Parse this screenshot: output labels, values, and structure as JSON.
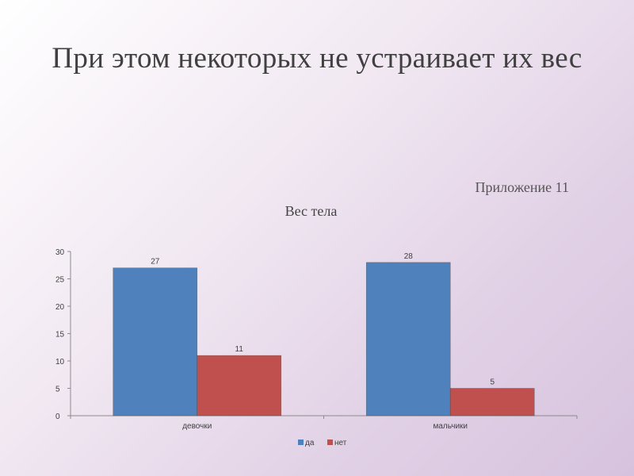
{
  "slide": {
    "title": "При этом некоторых не устраивает их вес",
    "appendix": "Приложение 11"
  },
  "chart_data": {
    "type": "bar",
    "title": "Вес тела",
    "categories": [
      "девочки",
      "мальчики"
    ],
    "series": [
      {
        "name": "да",
        "values": [
          27,
          28
        ],
        "color": "#4f81bd"
      },
      {
        "name": "нет",
        "values": [
          11,
          5
        ],
        "color": "#c0504d"
      }
    ],
    "ylim": [
      0,
      30
    ],
    "yticks": [
      0,
      5,
      10,
      15,
      20,
      25,
      30
    ],
    "xlabel": "",
    "ylabel": "",
    "grid": false,
    "data_labels": true,
    "legend": "bottom"
  }
}
